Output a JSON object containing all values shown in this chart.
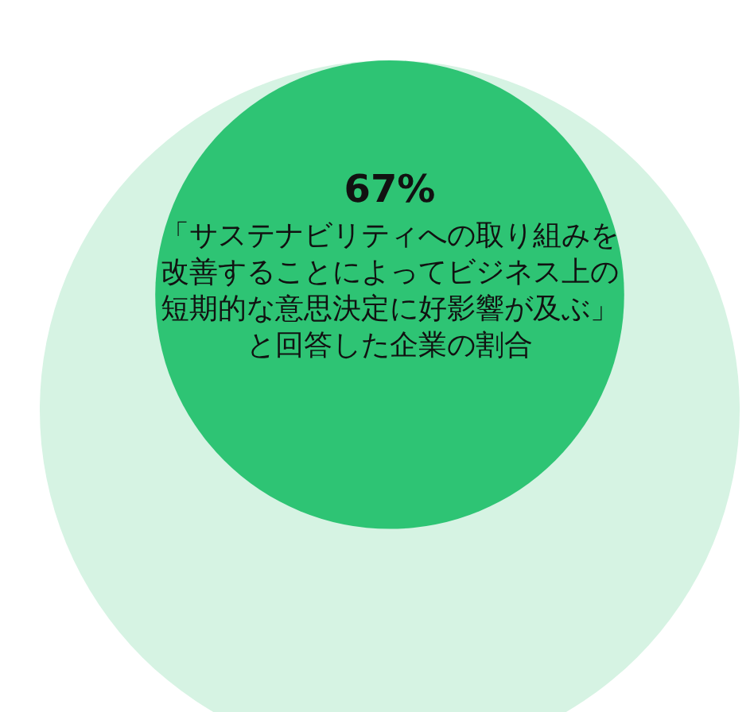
{
  "chart_data": {
    "type": "other",
    "categories": [
      "「サステナビリティへの取り組みを改善することによってビジネス上の短期的な意思決定に好影響が及ぶ」と回答した企業の割合"
    ],
    "values": [
      67
    ],
    "value_labels": [
      "67%"
    ],
    "colors": [
      "#2ec474"
    ]
  }
}
